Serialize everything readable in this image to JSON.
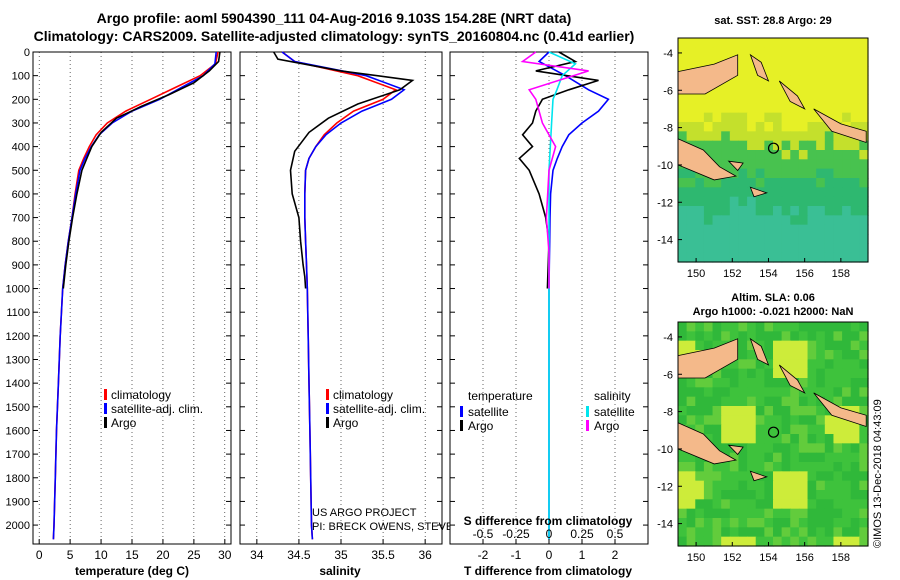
{
  "header": {
    "line1": "Argo profile: aoml 5904390_111 04-Aug-2016 9.103S 154.28E (NRT data)",
    "line2": "Climatology: CARS2009. Satellite-adjusted climatology: synTS_20160804.nc (0.41d earlier)"
  },
  "colors": {
    "argo": "#000000",
    "clim": "#ff0000",
    "sat": "#0000ff",
    "sal_sat": "#00e5ee",
    "sal_argo": "#ff00ff"
  },
  "chart_data": [
    {
      "id": "temperature",
      "type": "line",
      "xlabel": "temperature (deg C)",
      "xlim": [
        -1,
        31
      ],
      "ylim": [
        2080,
        0
      ],
      "xticks": [
        0,
        5,
        10,
        15,
        20,
        25,
        30
      ],
      "yticks": [
        0,
        100,
        200,
        300,
        400,
        500,
        600,
        700,
        800,
        900,
        1000,
        1100,
        1200,
        1300,
        1400,
        1500,
        1600,
        1700,
        1800,
        1900,
        2000
      ],
      "legend": [
        {
          "label": "climatology",
          "color": "#ff0000"
        },
        {
          "label": "satellite-adj. clim.",
          "color": "#0000ff"
        },
        {
          "label": "Argo",
          "color": "#000000"
        }
      ],
      "series": [
        {
          "name": "climatology",
          "color": "#ff0000",
          "x": [
            28.9,
            28.5,
            26,
            22,
            18,
            14,
            11,
            9.2,
            8.1,
            7.2,
            6.4,
            5.8,
            5.3,
            4.7,
            4.2,
            3.8,
            3.4,
            3.1,
            2.8,
            2.6,
            2.4,
            2.3
          ],
          "y": [
            0,
            50,
            100,
            150,
            200,
            250,
            300,
            350,
            400,
            450,
            500,
            600,
            700,
            800,
            900,
            1000,
            1200,
            1400,
            1600,
            1800,
            2000,
            2060
          ]
        },
        {
          "name": "satellite-adj. clim.",
          "color": "#0000ff",
          "x": [
            28.6,
            28.4,
            26.5,
            23,
            19.5,
            15,
            11.8,
            9.7,
            8.4,
            7.4,
            6.6,
            5.9,
            5.3,
            4.7,
            4.2,
            3.8,
            3.4,
            3.1,
            2.8,
            2.6,
            2.4,
            2.3
          ],
          "y": [
            0,
            50,
            100,
            150,
            200,
            250,
            300,
            350,
            400,
            450,
            500,
            600,
            700,
            800,
            900,
            1000,
            1200,
            1400,
            1600,
            1800,
            2000,
            2060
          ]
        },
        {
          "name": "Argo",
          "color": "#000000",
          "x": [
            29.2,
            29.0,
            27.5,
            25,
            21,
            16.5,
            12.5,
            10,
            8.5,
            7.7,
            6.9,
            6.1,
            5.4,
            4.8,
            4.3,
            3.9
          ],
          "y": [
            0,
            40,
            80,
            130,
            180,
            230,
            280,
            340,
            400,
            450,
            500,
            600,
            700,
            800,
            900,
            1000
          ]
        }
      ]
    },
    {
      "id": "salinity",
      "type": "line",
      "xlabel": "salinity",
      "xlim": [
        33.8,
        36.2
      ],
      "ylim": [
        2080,
        0
      ],
      "xticks": [
        34,
        34.5,
        35,
        35.5,
        36
      ],
      "legend": [
        {
          "label": "climatology",
          "color": "#ff0000"
        },
        {
          "label": "satellite-adj. clim.",
          "color": "#0000ff"
        },
        {
          "label": "Argo",
          "color": "#000000"
        }
      ],
      "annotations": [
        "US ARGO PROJECT",
        "PI: BRECK OWENS, STEVE JAYNE, P. ROBBINS"
      ],
      "series": [
        {
          "name": "climatology",
          "color": "#ff0000",
          "x": [
            34.3,
            34.45,
            35.2,
            35.65,
            35.5,
            35.15,
            34.95,
            34.8,
            34.7,
            34.62,
            34.58,
            34.57,
            34.57,
            34.58,
            34.59,
            34.6,
            34.61,
            34.62,
            34.63,
            34.64,
            34.65,
            34.66
          ],
          "y": [
            0,
            40,
            100,
            160,
            200,
            250,
            300,
            350,
            400,
            450,
            500,
            600,
            700,
            800,
            900,
            1000,
            1200,
            1400,
            1600,
            1800,
            2000,
            2060
          ]
        },
        {
          "name": "satellite-adj. clim.",
          "color": "#0000ff",
          "x": [
            34.3,
            34.45,
            35.3,
            35.75,
            35.6,
            35.25,
            35.0,
            34.82,
            34.7,
            34.62,
            34.58,
            34.57,
            34.57,
            34.58,
            34.59,
            34.6,
            34.61,
            34.62,
            34.63,
            34.64,
            34.65,
            34.66
          ],
          "y": [
            0,
            40,
            100,
            160,
            200,
            250,
            300,
            350,
            400,
            450,
            500,
            600,
            700,
            800,
            900,
            1000,
            1200,
            1400,
            1600,
            1800,
            2000,
            2060
          ]
        },
        {
          "name": "Argo",
          "color": "#000000",
          "x": [
            34.2,
            34.25,
            35.0,
            35.85,
            35.7,
            35.2,
            34.85,
            34.62,
            34.45,
            34.4,
            34.42,
            34.5,
            34.52,
            34.55,
            34.57,
            34.58
          ],
          "y": [
            0,
            30,
            80,
            120,
            160,
            220,
            280,
            340,
            420,
            500,
            600,
            700,
            800,
            900,
            950,
            1000
          ]
        }
      ]
    },
    {
      "id": "difference",
      "type": "line",
      "xlabel": "T difference from climatology",
      "top_axis_label": "S difference from climatology",
      "xlim": [
        -3,
        3
      ],
      "ylim": [
        2080,
        0
      ],
      "xticks": [
        -2,
        -1,
        0,
        1,
        2
      ],
      "top_ticks": [
        -0.5,
        -0.25,
        0,
        0.25,
        0.5
      ],
      "legend_left": {
        "title": "temperature",
        "items": [
          {
            "label": "satellite",
            "color": "#0000ff"
          },
          {
            "label": "Argo",
            "color": "#000000"
          }
        ]
      },
      "legend_right": {
        "title": "salinity",
        "items": [
          {
            "label": "satellite",
            "color": "#00e5ee"
          },
          {
            "label": "Argo",
            "color": "#ff00ff"
          }
        ]
      },
      "series": [
        {
          "name": "T satellite",
          "color": "#0000ff",
          "x": [
            0,
            -0.3,
            0.5,
            1.2,
            1.8,
            1.5,
            1.0,
            0.6,
            0.4,
            0.25,
            0.12,
            0.05,
            0.03,
            0.02,
            0.01,
            0,
            0,
            0,
            0,
            0
          ],
          "y": [
            0,
            40,
            100,
            160,
            200,
            250,
            300,
            350,
            400,
            450,
            500,
            600,
            700,
            800,
            900,
            1000,
            1200,
            1500,
            1800,
            2060
          ]
        },
        {
          "name": "T Argo",
          "color": "#000000",
          "x": [
            0.3,
            0.8,
            -0.4,
            1.5,
            0.6,
            -0.2,
            -0.4,
            -0.5,
            -0.8,
            -0.5,
            -0.9,
            -0.6,
            -0.3,
            -0.1,
            0,
            -0.05
          ],
          "y": [
            0,
            40,
            80,
            120,
            160,
            200,
            250,
            300,
            350,
            400,
            450,
            500,
            600,
            700,
            800,
            1000
          ]
        },
        {
          "name": "S satellite",
          "color": "#00e5ee",
          "x": [
            0,
            0.2,
            0.1,
            0.06,
            0.03,
            0.02,
            0.01,
            0,
            0,
            0,
            0,
            0,
            0
          ],
          "y": [
            0,
            50,
            100,
            160,
            200,
            300,
            400,
            500,
            700,
            900,
            1200,
            1600,
            2060
          ]
        },
        {
          "name": "S Argo",
          "color": "#ff00ff",
          "x": [
            -0.1,
            -0.2,
            0.3,
            -0.15,
            -0.1,
            -0.05,
            0.05,
            0,
            -0.02,
            0,
            0
          ],
          "y": [
            0,
            40,
            80,
            160,
            200,
            300,
            400,
            500,
            700,
            850,
            1000
          ]
        }
      ]
    }
  ],
  "maps": {
    "sst": {
      "title": "sat. SST: 28.8 Argo: 29",
      "xticks": [
        "150",
        "152",
        "154",
        "156",
        "158"
      ],
      "yticks": [
        "-4",
        "-6",
        "-8",
        "-10",
        "-12",
        "-14"
      ],
      "float_lon": 154.28,
      "float_lat": -9.103
    },
    "sla": {
      "title1": "Altim. SLA: 0.06",
      "title2": "Argo h1000: -0.021 h2000: NaN",
      "xticks": [
        "150",
        "152",
        "154",
        "156",
        "158"
      ],
      "yticks": [
        "-4",
        "-6",
        "-8",
        "-10",
        "-12",
        "-14"
      ],
      "float_lon": 154.28,
      "float_lat": -9.103
    }
  },
  "stamp": "©IMOS 13-Dec-2018 04:43:09"
}
